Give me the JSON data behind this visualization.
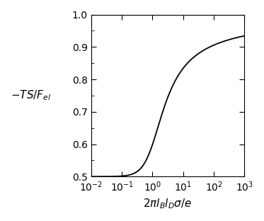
{
  "xlabel": "$2\\pi l_B l_D \\sigma/e$",
  "ylabel": "$-TS/F_{el}$",
  "xlim_log": [
    -2,
    3
  ],
  "ylim": [
    0.5,
    1.0
  ],
  "yticks": [
    0.5,
    0.6,
    0.7,
    0.8,
    0.9,
    1.0
  ],
  "xticks_major": [
    -2,
    -1,
    0,
    1,
    2,
    3
  ],
  "line_color": "#000000",
  "line_width": 1.3,
  "bg_color": "#ffffff",
  "figsize": [
    3.73,
    3.12
  ],
  "dpi": 100
}
